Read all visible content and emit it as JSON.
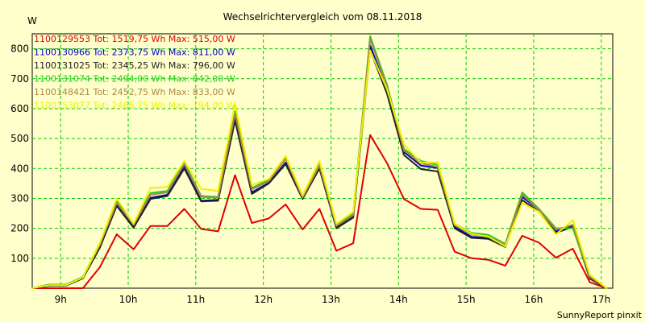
{
  "chart_data": {
    "type": "line",
    "title": "Wechselrichtervergleich vom 08.11.2018",
    "ylabel": "W",
    "xlabel": "",
    "ylim": [
      0,
      850
    ],
    "xlim": [
      8.58,
      17.17
    ],
    "grid": true,
    "footer": "SunnyReport pinxit",
    "yticks": [
      100,
      200,
      300,
      400,
      500,
      600,
      700,
      800
    ],
    "ytick_labels": [
      "100",
      "200",
      "300",
      "400",
      "500",
      "600",
      "700",
      "800"
    ],
    "xticks": [
      9,
      10,
      11,
      12,
      13,
      14,
      15,
      16,
      17
    ],
    "xtick_labels": [
      "9h",
      "10h",
      "11h",
      "12h",
      "13h",
      "14h",
      "15h",
      "16h",
      "17h"
    ],
    "x": [
      8.58,
      8.83,
      9.08,
      9.33,
      9.58,
      9.83,
      10.08,
      10.33,
      10.58,
      10.83,
      11.08,
      11.33,
      11.58,
      11.83,
      12.08,
      12.33,
      12.58,
      12.83,
      13.08,
      13.33,
      13.58,
      13.83,
      14.08,
      14.33,
      14.58,
      14.83,
      15.08,
      15.33,
      15.58,
      15.83,
      16.08,
      16.33,
      16.58,
      16.83,
      17.08
    ],
    "series": [
      {
        "name": "1100129553",
        "legend": "1100129553 Tot: 1519,75 Wh Max: 515,00 W",
        "color": "#e00000",
        "values": [
          0,
          0,
          0,
          0,
          70,
          180,
          130,
          208,
          208,
          265,
          198,
          190,
          378,
          218,
          233,
          280,
          196,
          265,
          125,
          150,
          512,
          418,
          298,
          265,
          262,
          122,
          100,
          95,
          75,
          175,
          152,
          102,
          132,
          20,
          0
        ]
      },
      {
        "name": "1100130966",
        "legend": "1100130966 Tot: 2373,75 Wh Max: 811,00 W",
        "color": "#0000cc",
        "values": [
          0,
          8,
          8,
          35,
          140,
          280,
          205,
          302,
          312,
          410,
          292,
          295,
          570,
          320,
          352,
          420,
          302,
          405,
          205,
          240,
          811,
          660,
          455,
          410,
          402,
          205,
          172,
          168,
          140,
          305,
          262,
          190,
          210,
          35,
          0
        ]
      },
      {
        "name": "1100131025",
        "legend": "1100131025 Tot: 2345,25 Wh Max: 796,00 W",
        "color": "#222222",
        "values": [
          0,
          8,
          8,
          33,
          135,
          275,
          202,
          298,
          308,
          400,
          290,
          292,
          560,
          315,
          350,
          415,
          298,
          400,
          200,
          236,
          796,
          650,
          445,
          398,
          390,
          200,
          168,
          165,
          138,
          295,
          255,
          185,
          205,
          32,
          0
        ]
      },
      {
        "name": "1100131074",
        "legend": "1100131074 Tot: 2494,00 Wh Max: 842,00 W",
        "color": "#22cc22",
        "values": [
          0,
          12,
          12,
          38,
          150,
          290,
          215,
          318,
          325,
          420,
          308,
          305,
          590,
          335,
          362,
          435,
          305,
          415,
          210,
          248,
          842,
          680,
          465,
          425,
          412,
          215,
          185,
          178,
          148,
          320,
          265,
          200,
          200,
          40,
          0
        ]
      },
      {
        "name": "1100148421",
        "legend": "1100148421 Tot: 2452,75 Wh Max: 833,00 W",
        "color": "#aa8844",
        "values": [
          0,
          10,
          10,
          36,
          145,
          285,
          212,
          312,
          320,
          415,
          305,
          302,
          583,
          330,
          358,
          432,
          303,
          410,
          208,
          244,
          833,
          672,
          460,
          418,
          405,
          210,
          180,
          172,
          145,
          312,
          262,
          195,
          212,
          38,
          0
        ]
      },
      {
        "name": "1100153077",
        "legend": "1100153077 Tot: 2466,75 Wh Max: 794,00 W",
        "color": "#f0f000",
        "values": [
          0,
          10,
          10,
          36,
          150,
          300,
          215,
          335,
          338,
          425,
          332,
          325,
          615,
          345,
          365,
          442,
          310,
          425,
          215,
          255,
          794,
          665,
          480,
          420,
          420,
          215,
          182,
          172,
          140,
          285,
          255,
          180,
          228,
          45,
          0
        ]
      }
    ]
  }
}
